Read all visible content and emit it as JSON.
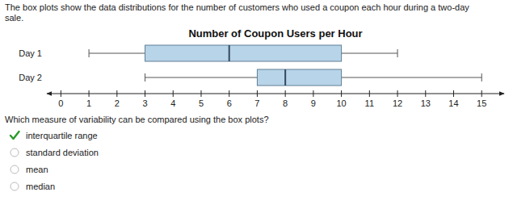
{
  "chart_data": {
    "type": "box",
    "orientation": "horizontal",
    "title": "Number of Coupon Users per Hour",
    "description": [
      "The box plots show the data distributions for the number of customers who used a coupon each hour during a two-day",
      "sale."
    ],
    "question": "Which measure of variability can be compared using the box plots?",
    "answer_options": [
      "interquartile range",
      "standard deviation",
      "mean",
      "median"
    ],
    "correct_answer": 0,
    "categories": [
      "Day 1",
      "Day 2"
    ],
    "stats": [
      {
        "min": 1,
        "q1": 3,
        "median": 6,
        "q3": 10,
        "max": 12
      },
      {
        "min": 3,
        "q1": 7,
        "median": 8,
        "q3": 10,
        "max": 15
      }
    ],
    "color": "#b8d4e8",
    "xlim": [
      -0.5,
      15.8
    ],
    "xticks": [
      0,
      1,
      2,
      3,
      4,
      5,
      6,
      7,
      8,
      9,
      10,
      11,
      12,
      13,
      14,
      15
    ],
    "grid": false
  }
}
